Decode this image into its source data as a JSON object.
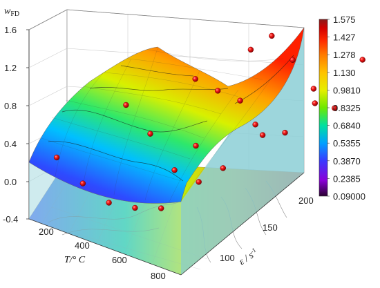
{
  "chart_data": {
    "type": "surface3d",
    "title": "",
    "zlabel": "w",
    "zlabel_sub": "FD",
    "xlabel": "T/° C",
    "ylabel": "ε / s",
    "ylabel_sup": "-1",
    "zlim": [
      -0.4,
      1.6
    ],
    "xlim": [
      0,
      850
    ],
    "ylim": [
      50,
      220
    ],
    "z_ticks": [
      "-0.4",
      "0.0",
      "0.4",
      "0.8",
      "1.2",
      "1.6"
    ],
    "x_ticks": [
      "200",
      "400",
      "600",
      "800"
    ],
    "y_ticks": [
      "100",
      "150",
      "200"
    ],
    "colorbar": {
      "labels": [
        "1.575",
        "1.427",
        "1.278",
        "1.130",
        "0.9810",
        "0.8325",
        "0.6840",
        "0.5355",
        "0.3870",
        "0.2385",
        "0.09000"
      ],
      "colors": [
        "#8b1a1a",
        "#d40000",
        "#ff2a00",
        "#ff7a00",
        "#ffc200",
        "#e6ee00",
        "#6ee800",
        "#00e0a0",
        "#00a0ff",
        "#3a3aff",
        "#8a00d8",
        "#2a0030"
      ]
    },
    "points": [
      {
        "T": 0,
        "e": 70,
        "z": 0.22
      },
      {
        "T": 0,
        "e": 120,
        "z": 0.7
      },
      {
        "T": 0,
        "e": 170,
        "z": 0.9
      },
      {
        "T": 0,
        "e": 210,
        "z": 1.15
      },
      {
        "T": 150,
        "e": 70,
        "z": 0.05
      },
      {
        "T": 150,
        "e": 120,
        "z": 0.5
      },
      {
        "T": 150,
        "e": 170,
        "z": 0.88
      },
      {
        "T": 150,
        "e": 210,
        "z": 1.4
      },
      {
        "T": 300,
        "e": 70,
        "z": -0.05
      },
      {
        "T": 300,
        "e": 120,
        "z": 0.22
      },
      {
        "T": 300,
        "e": 170,
        "z": 0.88
      },
      {
        "T": 300,
        "e": 210,
        "z": 1.25
      },
      {
        "T": 450,
        "e": 70,
        "z": 0.0
      },
      {
        "T": 450,
        "e": 120,
        "z": 0.2
      },
      {
        "T": 450,
        "e": 170,
        "z": 0.62
      },
      {
        "T": 450,
        "e": 210,
        "z": 1.05
      },
      {
        "T": 600,
        "e": 70,
        "z": 0.1
      },
      {
        "T": 600,
        "e": 120,
        "z": 0.45
      },
      {
        "T": 600,
        "e": 170,
        "z": 0.75
      },
      {
        "T": 600,
        "e": 210,
        "z": 0.95
      },
      {
        "T": 800,
        "e": 70,
        "z": 0.9
      },
      {
        "T": 800,
        "e": 120,
        "z": 1.05
      },
      {
        "T": 800,
        "e": 170,
        "z": 1.2
      },
      {
        "T": 800,
        "e": 210,
        "z": 1.6
      }
    ]
  }
}
